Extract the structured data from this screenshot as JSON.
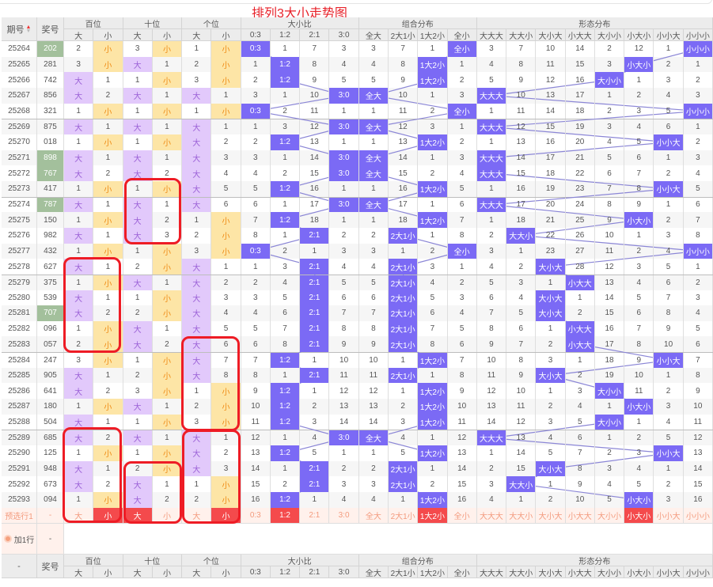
{
  "title": "排列3大小走势图",
  "header": {
    "issue": "期号",
    "number": "奖号",
    "dash": "-",
    "groups": [
      "百位",
      "十位",
      "个位",
      "大小比",
      "组合分布",
      "形态分布"
    ],
    "sub_pos": [
      "大",
      "小"
    ],
    "sub_ratio": [
      "0:3",
      "1:2",
      "2:1",
      "3:0"
    ],
    "sub_combo": [
      "全大",
      "2大1小",
      "1大2小",
      "全小"
    ],
    "sub_form": [
      "大大大",
      "大大小",
      "大小大",
      "小大大",
      "大小小",
      "小大小",
      "小小大",
      "小小小"
    ]
  },
  "colors": {
    "big_bg": "#e2c9fb",
    "small_bg": "#fde5a6",
    "hit": "#7b6af5",
    "pair": "#a3c09c",
    "preselect_red": "#f44a4c",
    "title": "#e8222a"
  },
  "rows": [
    {
      "issue": "25264",
      "num": "202",
      "pair": true,
      "bai": [
        "2",
        "小"
      ],
      "shi": [
        "3",
        "小"
      ],
      "ge": [
        "1",
        "小"
      ],
      "ratio": [
        "0:3",
        "1",
        "7",
        "3"
      ],
      "combo": [
        "3",
        "7",
        "1",
        "全小"
      ],
      "form": [
        "3",
        "7",
        "10",
        "14",
        "2",
        "12",
        "1",
        "小小小"
      ]
    },
    {
      "issue": "25265",
      "num": "281",
      "pair": false,
      "bai": [
        "3",
        "小"
      ],
      "shi": [
        "大",
        "1"
      ],
      "ge": [
        "2",
        "小"
      ],
      "ratio": [
        "1",
        "1:2",
        "8",
        "4"
      ],
      "combo": [
        "4",
        "8",
        "1大2小",
        "1"
      ],
      "form": [
        "4",
        "8",
        "11",
        "15",
        "3",
        "小大小",
        "2",
        "1"
      ]
    },
    {
      "issue": "25266",
      "num": "742",
      "pair": false,
      "bai": [
        "大",
        "1"
      ],
      "shi": [
        "1",
        "小"
      ],
      "ge": [
        "3",
        "小"
      ],
      "ratio": [
        "2",
        "1:2",
        "9",
        "5"
      ],
      "combo": [
        "5",
        "9",
        "1大2小",
        "2"
      ],
      "form": [
        "5",
        "9",
        "12",
        "16",
        "大小小",
        "1",
        "3",
        "2"
      ]
    },
    {
      "issue": "25267",
      "num": "856",
      "pair": false,
      "bai": [
        "大",
        "2"
      ],
      "shi": [
        "大",
        "1"
      ],
      "ge": [
        "大",
        "1"
      ],
      "ratio": [
        "3",
        "1",
        "10",
        "3:0"
      ],
      "combo": [
        "全大",
        "10",
        "1",
        "3"
      ],
      "form": [
        "大大大",
        "10",
        "13",
        "17",
        "1",
        "2",
        "4",
        "3"
      ]
    },
    {
      "issue": "25268",
      "num": "321",
      "pair": false,
      "bai": [
        "1",
        "小"
      ],
      "shi": [
        "1",
        "小"
      ],
      "ge": [
        "1",
        "小"
      ],
      "ratio": [
        "0:3",
        "2",
        "11",
        "1"
      ],
      "combo": [
        "1",
        "11",
        "2",
        "全小"
      ],
      "form": [
        "1",
        "11",
        "14",
        "18",
        "2",
        "3",
        "5",
        "小小小"
      ]
    },
    {
      "issue": "25269",
      "num": "875",
      "pair": false,
      "bai": [
        "大",
        "1"
      ],
      "shi": [
        "大",
        "1"
      ],
      "ge": [
        "大",
        "1"
      ],
      "ratio": [
        "1",
        "3",
        "12",
        "3:0"
      ],
      "combo": [
        "全大",
        "12",
        "3",
        "1"
      ],
      "form": [
        "大大大",
        "12",
        "15",
        "19",
        "3",
        "4",
        "6",
        "1"
      ]
    },
    {
      "issue": "25270",
      "num": "018",
      "pair": false,
      "bai": [
        "1",
        "小"
      ],
      "shi": [
        "1",
        "小"
      ],
      "ge": [
        "大",
        "2"
      ],
      "ratio": [
        "2",
        "1:2",
        "13",
        "1"
      ],
      "combo": [
        "1",
        "13",
        "1大2小",
        "2"
      ],
      "form": [
        "1",
        "13",
        "16",
        "20",
        "4",
        "5",
        "小小大",
        "2"
      ]
    },
    {
      "issue": "25271",
      "num": "898",
      "pair": true,
      "bai": [
        "大",
        "1"
      ],
      "shi": [
        "大",
        "1"
      ],
      "ge": [
        "大",
        "3"
      ],
      "ratio": [
        "3",
        "1",
        "14",
        "3:0"
      ],
      "combo": [
        "全大",
        "14",
        "1",
        "3"
      ],
      "form": [
        "大大大",
        "14",
        "17",
        "21",
        "5",
        "6",
        "1",
        "3"
      ]
    },
    {
      "issue": "25272",
      "num": "767",
      "pair": true,
      "bai": [
        "大",
        "2"
      ],
      "shi": [
        "大",
        "2"
      ],
      "ge": [
        "大",
        "4"
      ],
      "ratio": [
        "4",
        "2",
        "15",
        "3:0"
      ],
      "combo": [
        "全大",
        "15",
        "2",
        "4"
      ],
      "form": [
        "大大大",
        "15",
        "18",
        "22",
        "6",
        "7",
        "2",
        "4"
      ]
    },
    {
      "issue": "25273",
      "num": "417",
      "pair": false,
      "bai": [
        "1",
        "小"
      ],
      "shi": [
        "1",
        "小"
      ],
      "ge": [
        "大",
        "5"
      ],
      "ratio": [
        "5",
        "1:2",
        "16",
        "1"
      ],
      "combo": [
        "1",
        "16",
        "1大2小",
        "5"
      ],
      "form": [
        "1",
        "16",
        "19",
        "23",
        "7",
        "8",
        "小小大",
        "5"
      ]
    },
    {
      "issue": "25274",
      "num": "787",
      "pair": true,
      "bai": [
        "大",
        "1"
      ],
      "shi": [
        "大",
        "1"
      ],
      "ge": [
        "大",
        "6"
      ],
      "ratio": [
        "6",
        "1",
        "17",
        "3:0"
      ],
      "combo": [
        "全大",
        "17",
        "1",
        "6"
      ],
      "form": [
        "大大大",
        "17",
        "20",
        "24",
        "8",
        "9",
        "1",
        "6"
      ]
    },
    {
      "issue": "25275",
      "num": "150",
      "pair": false,
      "bai": [
        "1",
        "小"
      ],
      "shi": [
        "大",
        "2"
      ],
      "ge": [
        "1",
        "小"
      ],
      "ratio": [
        "7",
        "1:2",
        "18",
        "1"
      ],
      "combo": [
        "1",
        "18",
        "1大2小",
        "7"
      ],
      "form": [
        "1",
        "18",
        "21",
        "25",
        "9",
        "小大小",
        "2",
        "7"
      ]
    },
    {
      "issue": "25276",
      "num": "982",
      "pair": false,
      "bai": [
        "大",
        "1"
      ],
      "shi": [
        "大",
        "3"
      ],
      "ge": [
        "2",
        "小"
      ],
      "ratio": [
        "8",
        "1",
        "2:1",
        "2"
      ],
      "combo": [
        "2",
        "2大1小",
        "1",
        "8"
      ],
      "form": [
        "2",
        "大大小",
        "22",
        "26",
        "10",
        "1",
        "3",
        "8"
      ]
    },
    {
      "issue": "25277",
      "num": "432",
      "pair": false,
      "bai": [
        "1",
        "小"
      ],
      "shi": [
        "1",
        "小"
      ],
      "ge": [
        "3",
        "小"
      ],
      "ratio": [
        "0:3",
        "2",
        "1",
        "3"
      ],
      "combo": [
        "3",
        "1",
        "2",
        "全小"
      ],
      "form": [
        "3",
        "1",
        "23",
        "27",
        "11",
        "2",
        "4",
        "小小小"
      ]
    },
    {
      "issue": "25278",
      "num": "627",
      "pair": false,
      "bai": [
        "大",
        "1"
      ],
      "shi": [
        "2",
        "小"
      ],
      "ge": [
        "大",
        "1"
      ],
      "ratio": [
        "1",
        "3",
        "2:1",
        "4"
      ],
      "combo": [
        "4",
        "2大1小",
        "3",
        "1"
      ],
      "form": [
        "4",
        "2",
        "大小大",
        "28",
        "12",
        "3",
        "5",
        "1"
      ]
    },
    {
      "issue": "25279",
      "num": "375",
      "pair": false,
      "bai": [
        "1",
        "小"
      ],
      "shi": [
        "大",
        "1"
      ],
      "ge": [
        "大",
        "2"
      ],
      "ratio": [
        "2",
        "4",
        "2:1",
        "5"
      ],
      "combo": [
        "5",
        "2大1小",
        "4",
        "2"
      ],
      "form": [
        "5",
        "3",
        "1",
        "小大大",
        "13",
        "4",
        "6",
        "2"
      ]
    },
    {
      "issue": "25280",
      "num": "539",
      "pair": false,
      "bai": [
        "大",
        "1"
      ],
      "shi": [
        "1",
        "小"
      ],
      "ge": [
        "大",
        "3"
      ],
      "ratio": [
        "3",
        "5",
        "2:1",
        "6"
      ],
      "combo": [
        "6",
        "2大1小",
        "5",
        "3"
      ],
      "form": [
        "6",
        "4",
        "大小大",
        "1",
        "14",
        "5",
        "7",
        "3"
      ]
    },
    {
      "issue": "25281",
      "num": "707",
      "pair": true,
      "bai": [
        "大",
        "2"
      ],
      "shi": [
        "2",
        "小"
      ],
      "ge": [
        "大",
        "4"
      ],
      "ratio": [
        "4",
        "6",
        "2:1",
        "7"
      ],
      "combo": [
        "7",
        "2大1小",
        "6",
        "4"
      ],
      "form": [
        "7",
        "5",
        "大小大",
        "2",
        "15",
        "6",
        "8",
        "4"
      ]
    },
    {
      "issue": "25282",
      "num": "096",
      "pair": false,
      "bai": [
        "1",
        "小"
      ],
      "shi": [
        "大",
        "1"
      ],
      "ge": [
        "大",
        "5"
      ],
      "ratio": [
        "5",
        "7",
        "2:1",
        "8"
      ],
      "combo": [
        "8",
        "2大1小",
        "7",
        "5"
      ],
      "form": [
        "8",
        "6",
        "1",
        "小大大",
        "16",
        "7",
        "9",
        "5"
      ]
    },
    {
      "issue": "25283",
      "num": "057",
      "pair": false,
      "bai": [
        "2",
        "小"
      ],
      "shi": [
        "大",
        "2"
      ],
      "ge": [
        "大",
        "6"
      ],
      "ratio": [
        "6",
        "8",
        "2:1",
        "9"
      ],
      "combo": [
        "9",
        "2大1小",
        "8",
        "6"
      ],
      "form": [
        "9",
        "7",
        "2",
        "小大大",
        "17",
        "8",
        "10",
        "6"
      ]
    },
    {
      "issue": "25284",
      "num": "247",
      "pair": false,
      "bai": [
        "3",
        "小"
      ],
      "shi": [
        "1",
        "小"
      ],
      "ge": [
        "大",
        "7"
      ],
      "ratio": [
        "7",
        "1:2",
        "1",
        "10"
      ],
      "combo": [
        "10",
        "1",
        "1大2小",
        "7"
      ],
      "form": [
        "10",
        "8",
        "3",
        "1",
        "18",
        "9",
        "小小大",
        "7"
      ]
    },
    {
      "issue": "25285",
      "num": "905",
      "pair": false,
      "bai": [
        "大",
        "1"
      ],
      "shi": [
        "2",
        "小"
      ],
      "ge": [
        "大",
        "8"
      ],
      "ratio": [
        "8",
        "1",
        "2:1",
        "11"
      ],
      "combo": [
        "11",
        "2大1小",
        "1",
        "8"
      ],
      "form": [
        "11",
        "9",
        "大小大",
        "2",
        "19",
        "10",
        "1",
        "8"
      ]
    },
    {
      "issue": "25286",
      "num": "641",
      "pair": false,
      "bai": [
        "大",
        "2"
      ],
      "shi": [
        "3",
        "小"
      ],
      "ge": [
        "1",
        "小"
      ],
      "ratio": [
        "9",
        "1:2",
        "1",
        "12"
      ],
      "combo": [
        "12",
        "1",
        "1大2小",
        "9"
      ],
      "form": [
        "12",
        "10",
        "1",
        "3",
        "大小小",
        "11",
        "2",
        "9"
      ]
    },
    {
      "issue": "25287",
      "num": "180",
      "pair": false,
      "bai": [
        "1",
        "小"
      ],
      "shi": [
        "大",
        "1"
      ],
      "ge": [
        "2",
        "小"
      ],
      "ratio": [
        "10",
        "1:2",
        "2",
        "13"
      ],
      "combo": [
        "13",
        "2",
        "1大2小",
        "10"
      ],
      "form": [
        "13",
        "11",
        "2",
        "4",
        "1",
        "小大小",
        "3",
        "10"
      ]
    },
    {
      "issue": "25288",
      "num": "504",
      "pair": false,
      "bai": [
        "大",
        "1"
      ],
      "shi": [
        "1",
        "小"
      ],
      "ge": [
        "3",
        "小"
      ],
      "ratio": [
        "11",
        "1:2",
        "3",
        "14"
      ],
      "combo": [
        "14",
        "3",
        "1大2小",
        "11"
      ],
      "form": [
        "14",
        "12",
        "3",
        "5",
        "大小小",
        "1",
        "4",
        "11"
      ]
    },
    {
      "issue": "25289",
      "num": "685",
      "pair": false,
      "bai": [
        "大",
        "2"
      ],
      "shi": [
        "大",
        "1"
      ],
      "ge": [
        "大",
        "1"
      ],
      "ratio": [
        "12",
        "1",
        "4",
        "3:0"
      ],
      "combo": [
        "全大",
        "4",
        "1",
        "12"
      ],
      "form": [
        "大大大",
        "13",
        "4",
        "6",
        "1",
        "2",
        "5",
        "12"
      ]
    },
    {
      "issue": "25290",
      "num": "125",
      "pair": false,
      "bai": [
        "1",
        "小"
      ],
      "shi": [
        "1",
        "小"
      ],
      "ge": [
        "大",
        "2"
      ],
      "ratio": [
        "13",
        "1:2",
        "5",
        "1"
      ],
      "combo": [
        "1",
        "5",
        "1大2小",
        "13"
      ],
      "form": [
        "1",
        "14",
        "5",
        "7",
        "2",
        "3",
        "小小大",
        "13"
      ]
    },
    {
      "issue": "25291",
      "num": "948",
      "pair": false,
      "bai": [
        "大",
        "1"
      ],
      "shi": [
        "2",
        "小"
      ],
      "ge": [
        "大",
        "3"
      ],
      "ratio": [
        "14",
        "1",
        "2:1",
        "2"
      ],
      "combo": [
        "2",
        "2大1小",
        "1",
        "14"
      ],
      "form": [
        "2",
        "15",
        "大小大",
        "8",
        "3",
        "4",
        "1",
        "14"
      ]
    },
    {
      "issue": "25292",
      "num": "673",
      "pair": false,
      "bai": [
        "大",
        "2"
      ],
      "shi": [
        "大",
        "1"
      ],
      "ge": [
        "1",
        "小"
      ],
      "ratio": [
        "15",
        "2",
        "2:1",
        "3"
      ],
      "combo": [
        "3",
        "2大1小",
        "2",
        "15"
      ],
      "form": [
        "3",
        "大大小",
        "1",
        "9",
        "4",
        "5",
        "2",
        "15"
      ]
    },
    {
      "issue": "25293",
      "num": "094",
      "pair": false,
      "bai": [
        "1",
        "小"
      ],
      "shi": [
        "大",
        "2"
      ],
      "ge": [
        "2",
        "小"
      ],
      "ratio": [
        "16",
        "1:2",
        "1",
        "4"
      ],
      "combo": [
        "4",
        "1",
        "1大2小",
        "16"
      ],
      "form": [
        "4",
        "1",
        "2",
        "10",
        "5",
        "小大小",
        "3",
        "16"
      ]
    }
  ],
  "preselect": {
    "label": "预选行1",
    "num": "-",
    "cells": [
      "大",
      "小",
      "大",
      "小",
      "大",
      "小",
      "0:3",
      "1:2",
      "2:1",
      "3:0",
      "全大",
      "2大1小",
      "1大2小",
      "全小",
      "大大大",
      "大大小",
      "大小大",
      "小大大",
      "大小小",
      "小大小",
      "小小大",
      "小小小"
    ],
    "selected": [
      1,
      2,
      5,
      7,
      12,
      19
    ]
  },
  "add_row": {
    "label": "加1行",
    "num": "-"
  }
}
